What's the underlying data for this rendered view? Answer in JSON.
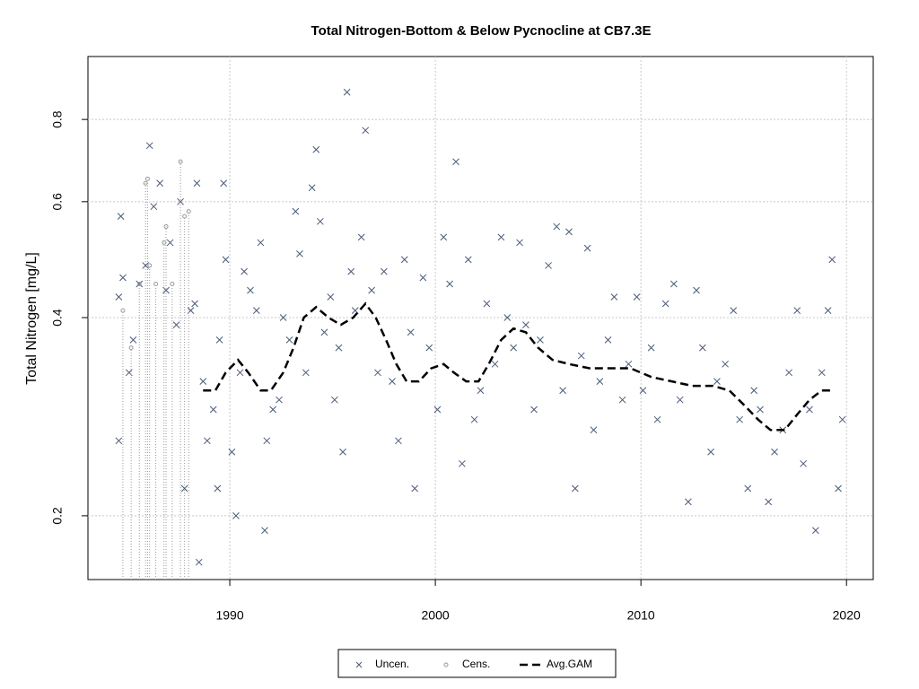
{
  "chart_data": {
    "type": "scatter",
    "title": "Total Nitrogen-Bottom & Below Pycnocline at CB7.3E",
    "y_label": "Total Nitrogen [mg/L]",
    "ylog": true,
    "grid": true,
    "legend": "bottom",
    "xlim": [
      1983.1,
      2021.3
    ],
    "xticks": [
      1990,
      2000,
      2010,
      2020
    ],
    "ylim": [
      0.16,
      0.997
    ],
    "yticks": [
      0.2,
      0.4,
      0.6,
      0.8
    ],
    "series": [
      {
        "name": "Uncen.",
        "color": "#4a5a7a",
        "marker": "x",
        "x": [
          1984.7,
          1984.8,
          1984.6,
          1984.6,
          1985.1,
          1985.3,
          1985.6,
          1985.9,
          1986.1,
          1986.3,
          1986.6,
          1986.9,
          1987.1,
          1987.4,
          1987.6,
          1987.8,
          1988.1,
          1988.3,
          1988.4,
          1988.5,
          1988.7,
          1988.9,
          1989.2,
          1989.4,
          1989.5,
          1989.7,
          1989.8,
          1990.1,
          1990.3,
          1990.5,
          1990.7,
          1991.0,
          1991.3,
          1991.5,
          1991.7,
          1991.8,
          1992.1,
          1992.4,
          1992.6,
          1992.9,
          1993.2,
          1993.4,
          1993.7,
          1994.0,
          1994.2,
          1994.4,
          1994.6,
          1994.9,
          1995.1,
          1995.3,
          1995.5,
          1995.7,
          1995.9,
          1996.1,
          1996.4,
          1996.6,
          1996.9,
          1997.2,
          1997.5,
          1997.9,
          1998.2,
          1998.5,
          1998.8,
          1999.0,
          1999.4,
          1999.7,
          2000.1,
          2000.4,
          2000.7,
          2001.0,
          2001.3,
          2001.6,
          2001.9,
          2002.2,
          2002.5,
          2002.9,
          2003.2,
          2003.5,
          2003.8,
          2004.1,
          2004.4,
          2004.8,
          2005.1,
          2005.5,
          2005.9,
          2006.2,
          2006.5,
          2006.8,
          2007.1,
          2007.4,
          2007.7,
          2008.0,
          2008.4,
          2008.7,
          2009.1,
          2009.4,
          2009.8,
          2010.1,
          2010.5,
          2010.8,
          2011.2,
          2011.6,
          2011.9,
          2012.3,
          2012.7,
          2013.0,
          2013.4,
          2013.7,
          2014.1,
          2014.5,
          2014.8,
          2015.2,
          2015.5,
          2015.8,
          2016.2,
          2016.5,
          2016.9,
          2017.2,
          2017.6,
          2017.9,
          2018.2,
          2018.5,
          2018.8,
          2019.1,
          2019.3,
          2019.6,
          2019.8
        ],
        "values": [
          0.57,
          0.46,
          0.43,
          0.26,
          0.33,
          0.37,
          0.45,
          0.48,
          0.73,
          0.59,
          0.64,
          0.44,
          0.52,
          0.39,
          0.6,
          0.22,
          0.41,
          0.42,
          0.64,
          0.17,
          0.32,
          0.26,
          0.29,
          0.22,
          0.37,
          0.64,
          0.49,
          0.25,
          0.2,
          0.33,
          0.47,
          0.44,
          0.41,
          0.52,
          0.19,
          0.26,
          0.29,
          0.3,
          0.4,
          0.37,
          0.58,
          0.5,
          0.33,
          0.63,
          0.72,
          0.56,
          0.38,
          0.43,
          0.3,
          0.36,
          0.25,
          0.88,
          0.47,
          0.41,
          0.53,
          0.77,
          0.44,
          0.33,
          0.47,
          0.32,
          0.26,
          0.49,
          0.38,
          0.22,
          0.46,
          0.36,
          0.29,
          0.53,
          0.45,
          0.69,
          0.24,
          0.49,
          0.28,
          0.31,
          0.42,
          0.34,
          0.53,
          0.4,
          0.36,
          0.52,
          0.39,
          0.29,
          0.37,
          0.48,
          0.55,
          0.31,
          0.54,
          0.22,
          0.35,
          0.51,
          0.27,
          0.32,
          0.37,
          0.43,
          0.3,
          0.34,
          0.43,
          0.31,
          0.36,
          0.28,
          0.42,
          0.45,
          0.3,
          0.21,
          0.44,
          0.36,
          0.25,
          0.32,
          0.34,
          0.41,
          0.28,
          0.22,
          0.31,
          0.29,
          0.21,
          0.25,
          0.27,
          0.33,
          0.41,
          0.24,
          0.29,
          0.19,
          0.33,
          0.41,
          0.49,
          0.22,
          0.28
        ]
      },
      {
        "name": "Cens.",
        "color": "#999999",
        "marker": "o",
        "x": [
          1984.8,
          1985.2,
          1985.6,
          1985.9,
          1986.0,
          1986.1,
          1986.4,
          1986.8,
          1986.9,
          1987.2,
          1987.6,
          1987.8,
          1988.0
        ],
        "values": [
          0.41,
          0.36,
          0.45,
          0.64,
          0.65,
          0.48,
          0.45,
          0.52,
          0.55,
          0.45,
          0.69,
          0.57,
          0.58
        ]
      },
      {
        "name": "Avg.GAM",
        "color": "#000000",
        "marker": "dashed",
        "x": [
          1988.7,
          1989.3,
          1989.8,
          1990.4,
          1990.9,
          1991.5,
          1992.0,
          1992.6,
          1993.1,
          1993.6,
          1994.2,
          1994.8,
          1995.4,
          1996.0,
          1996.6,
          1997.1,
          1997.6,
          1998.1,
          1998.6,
          1999.2,
          1999.8,
          2000.4,
          2000.9,
          2001.5,
          2002.1,
          2002.6,
          2003.2,
          2003.8,
          2004.4,
          2005.0,
          2005.7,
          2006.5,
          2007.5,
          2008.5,
          2009.5,
          2010.5,
          2011.5,
          2012.5,
          2013.5,
          2014.3,
          2015.0,
          2015.7,
          2016.3,
          2017.0,
          2017.6,
          2018.2,
          2018.8,
          2019.4
        ],
        "values": [
          0.31,
          0.31,
          0.33,
          0.345,
          0.33,
          0.31,
          0.31,
          0.33,
          0.36,
          0.4,
          0.415,
          0.4,
          0.39,
          0.4,
          0.42,
          0.4,
          0.37,
          0.34,
          0.32,
          0.32,
          0.335,
          0.34,
          0.33,
          0.32,
          0.32,
          0.34,
          0.37,
          0.385,
          0.38,
          0.36,
          0.345,
          0.34,
          0.335,
          0.335,
          0.335,
          0.325,
          0.32,
          0.315,
          0.315,
          0.31,
          0.295,
          0.28,
          0.27,
          0.27,
          0.285,
          0.3,
          0.31,
          0.31
        ]
      }
    ]
  }
}
